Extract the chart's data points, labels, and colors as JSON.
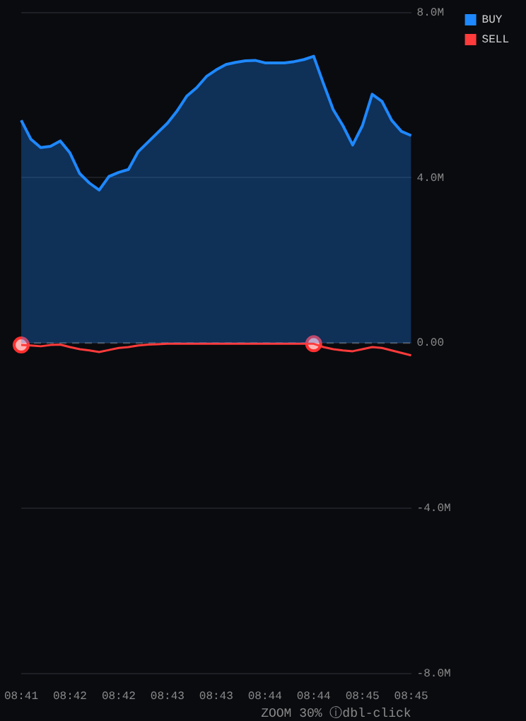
{
  "chart_data": {
    "type": "line",
    "categories": [
      "08:41",
      null,
      null,
      null,
      null,
      "08:42",
      null,
      null,
      null,
      null,
      "08:42",
      null,
      null,
      null,
      null,
      "08:43",
      null,
      null,
      null,
      null,
      "08:43",
      null,
      null,
      null,
      null,
      "08:44",
      null,
      null,
      null,
      null,
      "08:44",
      null,
      null,
      null,
      null,
      "08:45",
      null,
      null,
      null,
      null,
      "08:45"
    ],
    "series": [
      {
        "name": "BUY",
        "type": "area",
        "color": "#1e88ff",
        "values": [
          5.39,
          4.93,
          4.73,
          4.76,
          4.89,
          4.6,
          4.1,
          3.87,
          3.7,
          4.03,
          4.13,
          4.2,
          4.63,
          4.86,
          5.09,
          5.32,
          5.62,
          5.98,
          6.18,
          6.45,
          6.61,
          6.74,
          6.79,
          6.83,
          6.84,
          6.78,
          6.78,
          6.78,
          6.81,
          6.86,
          6.94,
          6.28,
          5.65,
          5.26,
          4.79,
          5.26,
          6.02,
          5.85,
          5.39,
          5.12,
          5.02
        ]
      },
      {
        "name": "SELL",
        "type": "line",
        "color": "#ff3b3b",
        "values": [
          -0.05,
          -0.06,
          -0.08,
          -0.05,
          -0.04,
          -0.1,
          -0.15,
          -0.18,
          -0.22,
          -0.17,
          -0.12,
          -0.1,
          -0.06,
          -0.04,
          -0.03,
          -0.02,
          -0.02,
          -0.02,
          -0.02,
          -0.02,
          -0.02,
          -0.02,
          -0.02,
          -0.02,
          -0.02,
          -0.02,
          -0.02,
          -0.02,
          -0.02,
          -0.02,
          -0.02,
          -0.1,
          -0.15,
          -0.18,
          -0.2,
          -0.15,
          -0.1,
          -0.12,
          -0.18,
          -0.24,
          -0.3
        ]
      },
      {
        "type": "scatter",
        "marker": "circle",
        "color": "#ffb4b4",
        "values": [
          -0.05,
          null,
          null,
          null,
          null,
          null,
          null,
          null,
          null,
          null,
          null,
          null,
          null,
          null,
          null,
          null,
          null,
          null,
          null,
          null,
          null,
          null,
          null,
          null,
          null,
          null,
          null,
          null,
          null,
          null,
          -0.02,
          null,
          null,
          null,
          null,
          null,
          null,
          null,
          null,
          null,
          null
        ]
      }
    ],
    "ylim": [
      -8,
      8
    ],
    "yticks": [
      {
        "value": 8,
        "label": "8.0M"
      },
      {
        "value": 4,
        "label": "4.0M"
      },
      {
        "value": 0,
        "label": "0.00"
      },
      {
        "value": -4,
        "label": "-4.0M"
      },
      {
        "value": -8,
        "label": "-8.0M"
      }
    ],
    "ref_lines": [
      {
        "axis": "y",
        "value": 0,
        "color": "#555555",
        "line_style": "dashed"
      }
    ],
    "grid": "y",
    "legend": "top right",
    "marker": "none",
    "line_style": "solid",
    "annotations": [
      "ZOOM 30% ⓘdbl-click"
    ]
  }
}
